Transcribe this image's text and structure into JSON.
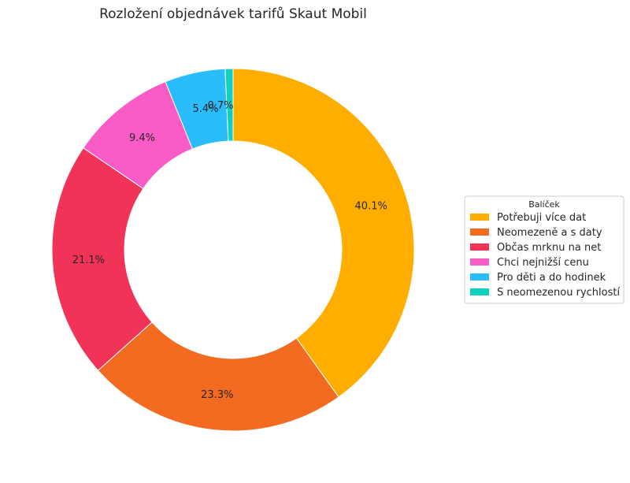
{
  "chart_data": {
    "type": "pie",
    "variant": "donut",
    "title": "Rozložení objednávek tarifů Skaut Mobil",
    "legend": {
      "title": "Balíček",
      "placement": "right"
    },
    "slices": [
      {
        "label": "Potřebuji více dat",
        "value": 40.1,
        "display": "40.1%",
        "color": "#ffae00"
      },
      {
        "label": "Neomezeně a s daty",
        "value": 23.3,
        "display": "23.3%",
        "color": "#f26b21"
      },
      {
        "label": "Občas mrknu na net",
        "value": 21.1,
        "display": "21.1%",
        "color": "#f23358"
      },
      {
        "label": "Chci nejnižší cenu",
        "value": 9.4,
        "display": "9.4%",
        "color": "#f95cc6"
      },
      {
        "label": "Pro děti a do hodinek",
        "value": 5.4,
        "display": "5.4%",
        "color": "#2bbdfb"
      },
      {
        "label": "S neomezenou rychlostí",
        "value": 0.7,
        "display": "0.7%",
        "color": "#0fcfbe"
      }
    ]
  }
}
